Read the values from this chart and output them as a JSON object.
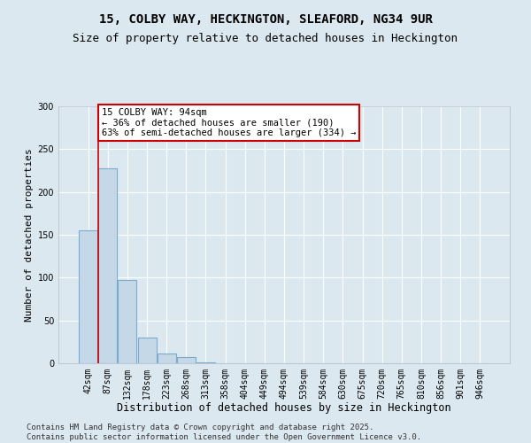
{
  "title1": "15, COLBY WAY, HECKINGTON, SLEAFORD, NG34 9UR",
  "title2": "Size of property relative to detached houses in Heckington",
  "xlabel": "Distribution of detached houses by size in Heckington",
  "ylabel": "Number of detached properties",
  "bar_labels": [
    "42sqm",
    "87sqm",
    "132sqm",
    "178sqm",
    "223sqm",
    "268sqm",
    "313sqm",
    "358sqm",
    "404sqm",
    "449sqm",
    "494sqm",
    "539sqm",
    "584sqm",
    "630sqm",
    "675sqm",
    "720sqm",
    "765sqm",
    "810sqm",
    "856sqm",
    "901sqm",
    "946sqm"
  ],
  "bar_values": [
    155,
    228,
    97,
    30,
    11,
    7,
    1,
    0,
    0,
    0,
    0,
    0,
    0,
    0,
    0,
    0,
    0,
    0,
    0,
    0,
    0
  ],
  "bar_color": "#c5d8e8",
  "bar_edge_color": "#7aabcf",
  "vline_x_index": 1,
  "annotation_text": "15 COLBY WAY: 94sqm\n← 36% of detached houses are smaller (190)\n63% of semi-detached houses are larger (334) →",
  "annotation_box_color": "#ffffff",
  "annotation_box_edge_color": "#cc0000",
  "vline_color": "#cc0000",
  "ylim": [
    0,
    300
  ],
  "yticks": [
    0,
    50,
    100,
    150,
    200,
    250,
    300
  ],
  "bg_color": "#dce8f0",
  "plot_bg_color": "#dce8f0",
  "grid_color": "#ffffff",
  "footer_text": "Contains HM Land Registry data © Crown copyright and database right 2025.\nContains public sector information licensed under the Open Government Licence v3.0.",
  "title1_fontsize": 10,
  "title2_fontsize": 9,
  "xlabel_fontsize": 8.5,
  "ylabel_fontsize": 8,
  "tick_fontsize": 7,
  "annotation_fontsize": 7.5,
  "footer_fontsize": 6.5
}
